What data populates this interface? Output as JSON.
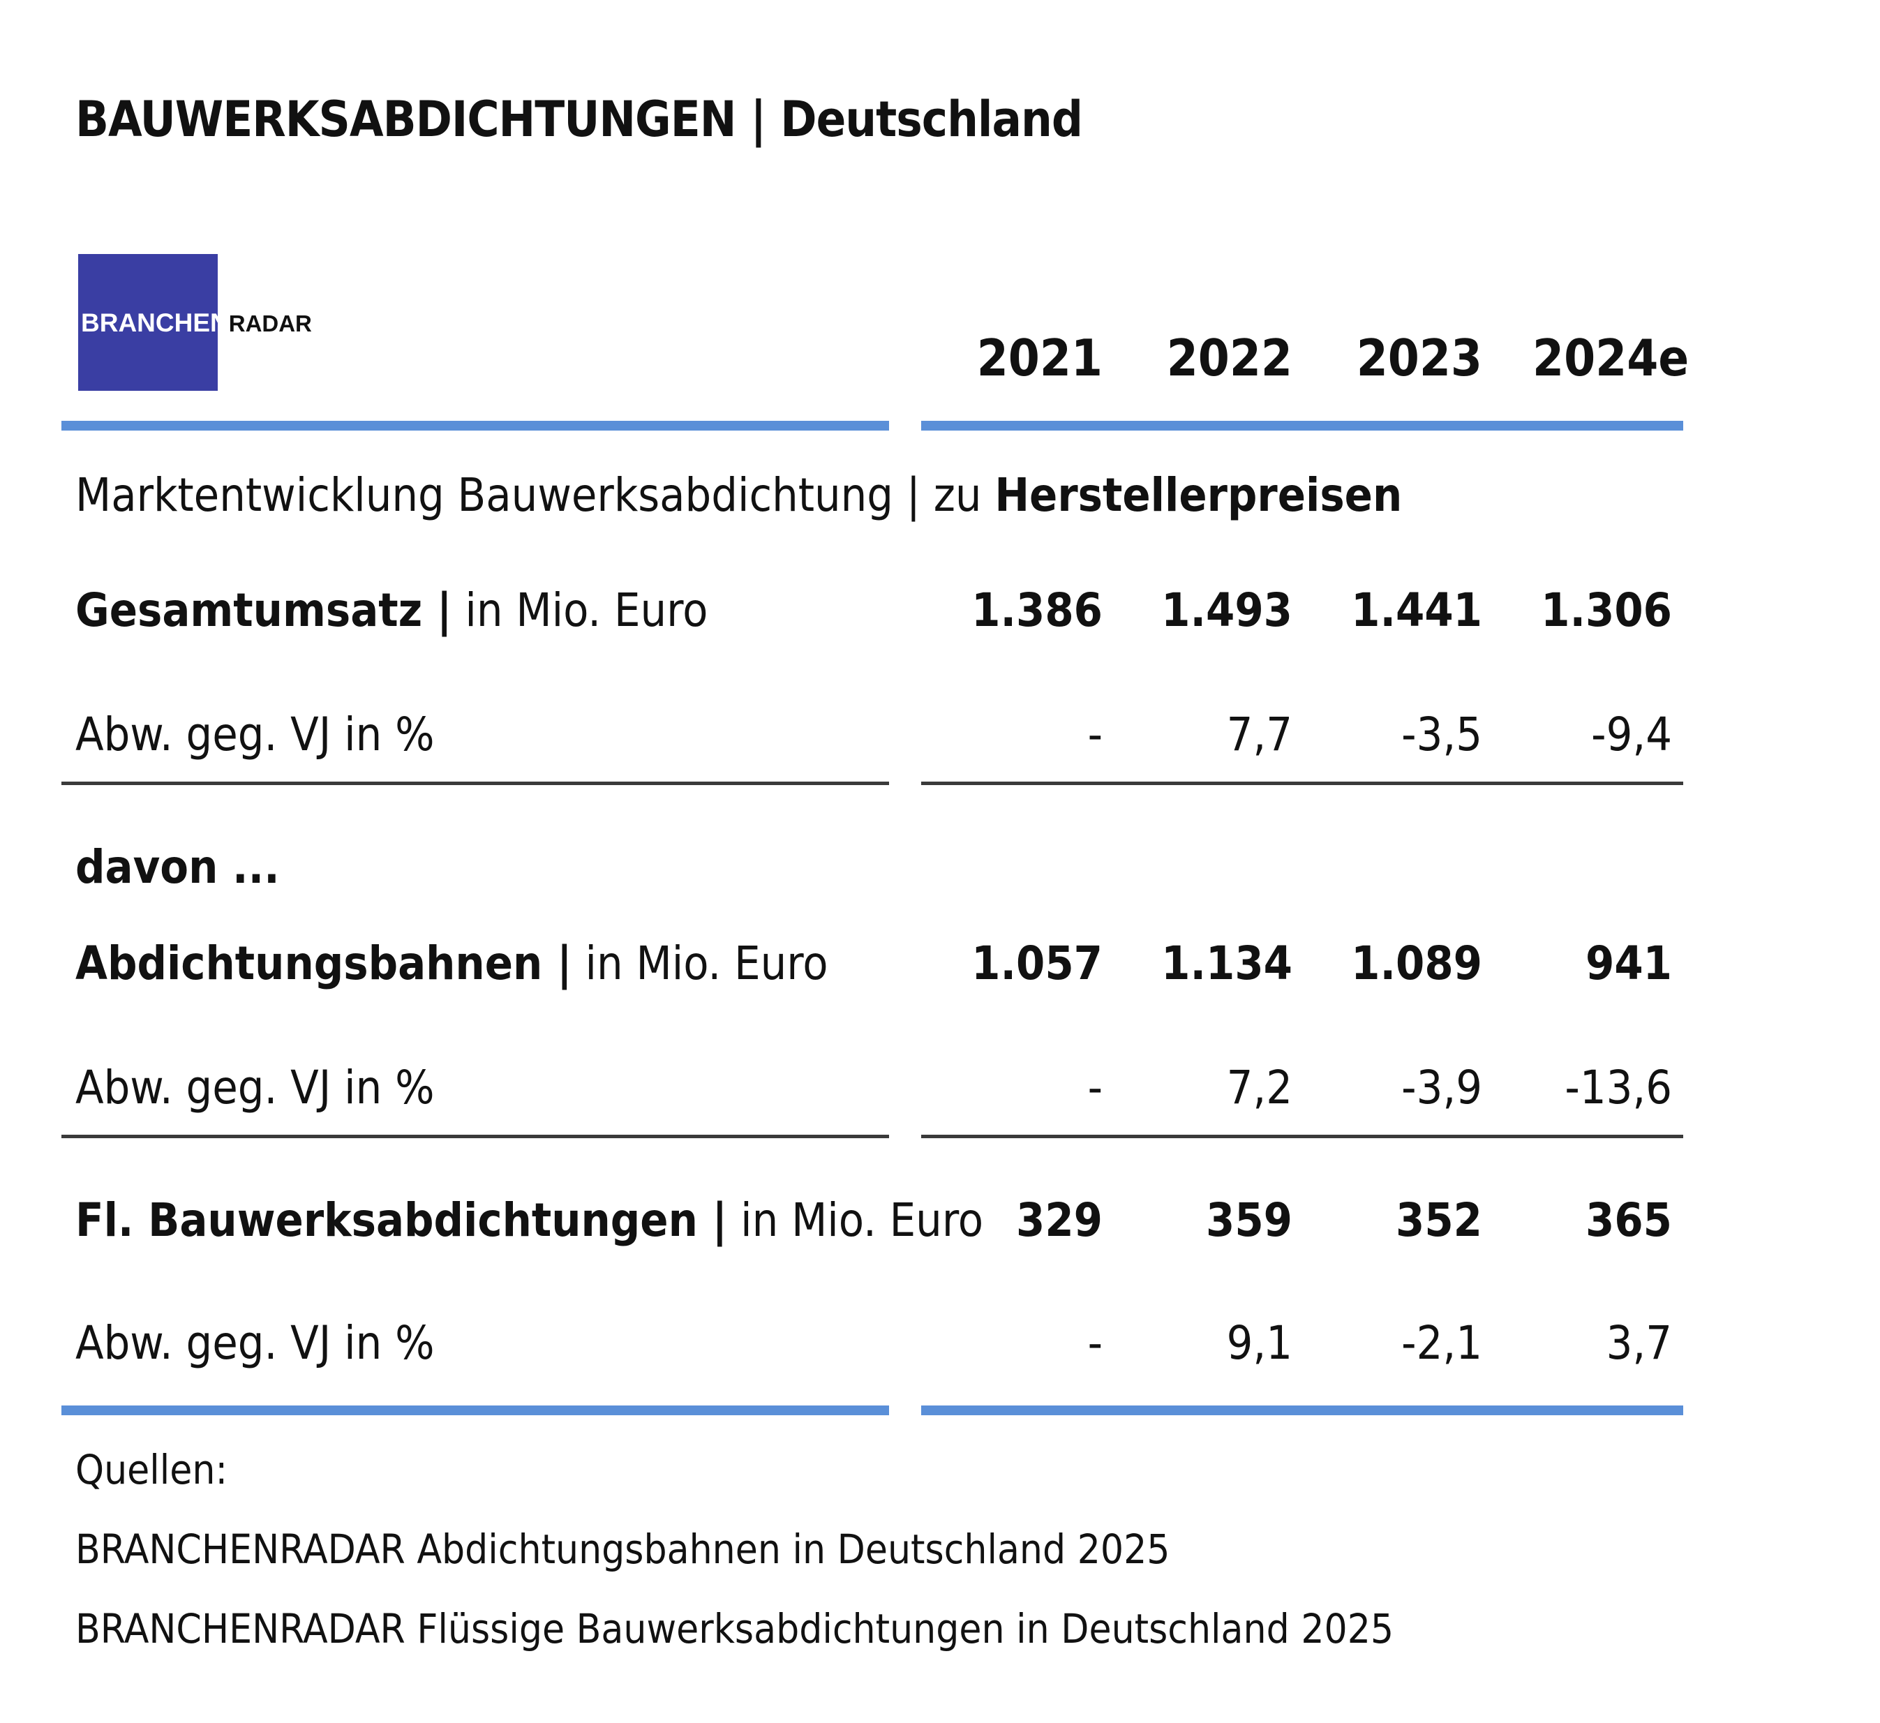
{
  "header": {
    "title": "BAUWERKSABDICHTUNGEN | Deutschland",
    "logo_text_a": "BRANCHEN",
    "logo_text_b": "RADAR"
  },
  "years": [
    "2021",
    "2022",
    "2023",
    "2024e"
  ],
  "subtitle": {
    "prefix": "Marktentwicklung Bauwerksabdichtung | zu ",
    "bold": "Herstellerpreisen"
  },
  "rows": [
    {
      "label_bold": "Gesamtumsatz |",
      "label_rest": " in Mio. Euro",
      "values": [
        "1.386",
        "1.493",
        "1.441",
        "1.306"
      ]
    },
    {
      "label": "Abw. geg. VJ in %",
      "values": [
        "-",
        "7,7",
        "-3,5",
        "-9,4"
      ]
    },
    {
      "label_bold": "davon ..."
    },
    {
      "label_bold": "Abdichtungsbahnen |",
      "label_rest": " in Mio. Euro",
      "values": [
        "1.057",
        "1.134",
        "1.089",
        "941"
      ]
    },
    {
      "label": "Abw. geg. VJ in %",
      "values": [
        "-",
        "7,2",
        "-3,9",
        "-13,6"
      ]
    },
    {
      "label_bold": "Fl. Bauwerksabdichtungen |",
      "label_rest": " in Mio. Euro",
      "values": [
        "329",
        "359",
        "352",
        "365"
      ]
    },
    {
      "label": "Abw. geg. VJ in %",
      "values": [
        "-",
        "9,1",
        "-2,1",
        "3,7"
      ]
    }
  ],
  "sources": {
    "heading": "Quellen:",
    "items": [
      "BRANCHENRADAR Abdichtungsbahnen in Deutschland 2025",
      "BRANCHENRADAR Flüssige Bauwerksabdichtungen in Deutschland 2025"
    ]
  },
  "colors": {
    "accent_rule": "#5a8fd8",
    "logo_bg": "#3a3ea3",
    "thin_rule": "#3a3a3a"
  }
}
